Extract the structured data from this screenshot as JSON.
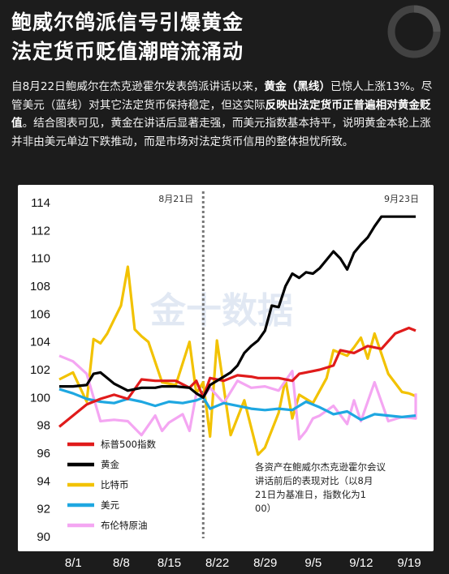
{
  "headline": {
    "line1": "鲍威尔鸽派信号引爆黄金",
    "line2": "法定货币贬值潮暗流涌动"
  },
  "intro": {
    "p1": "自8月22日鲍威尔在杰克逊霍尔发表鸽派讲话以来，",
    "p1_bold": "黄金（黑线）",
    "p2": "已惊人上涨13%。尽管美元（蓝线）对其它法定货币保持稳定，但这实际",
    "p2_bold": "反映出法定货币正普遍相对黄金贬值",
    "p3": "。结合图表可见，黄金在讲话后显著走强，而美元指数基本持平，说明黄金本轮上涨并非由美元单边下跌推动，而是市场对法定货币信用的整体担忧所致。"
  },
  "watermark": "金十数据",
  "colors": {
    "background": "#1c1c1c",
    "sp500": "#e01b1b",
    "gold": "#000000",
    "bitcoin": "#f2c200",
    "usd": "#1ea7e1",
    "brent": "#f4a6f2"
  },
  "chart_data": {
    "type": "line",
    "x_tick_labels": [
      "8/1",
      "8/8",
      "8/15",
      "8/22",
      "8/29",
      "9/5",
      "9/12",
      "9/19"
    ],
    "x_range": [
      0,
      54
    ],
    "ylim": [
      90,
      114
    ],
    "y_ticks": [
      90,
      92,
      94,
      96,
      98,
      100,
      102,
      104,
      106,
      108,
      110,
      112,
      114
    ],
    "grid": false,
    "legend_position": "bottom-left",
    "reference_line": {
      "x": 21,
      "label": "8月21日"
    },
    "end_label": "9月23日",
    "note": "各资产在鲍威尔杰克逊霍尔会议讲话前后的表现对比（以8月21日为基准日，指数化为100）",
    "series": [
      {
        "name": "标普500指数",
        "color_key": "sp500",
        "x": [
          0,
          2,
          4,
          6,
          8,
          10,
          12,
          14,
          15,
          17,
          19,
          20,
          21,
          22,
          24,
          26,
          28,
          29,
          30,
          32,
          34,
          35,
          36,
          38,
          40,
          41,
          43,
          45,
          47,
          49,
          51,
          53
        ],
        "y": [
          97.9,
          98.7,
          99.5,
          99.9,
          100.2,
          99.9,
          101.3,
          101.2,
          101.2,
          101.2,
          100.7,
          101.2,
          100.0,
          101.4,
          101.2,
          101.6,
          101.5,
          101.4,
          101.4,
          101.4,
          101.2,
          101.7,
          101.8,
          102.0,
          102.3,
          103.4,
          103.2,
          103.7,
          103.5,
          104.6,
          105.0,
          104.8
        ]
      },
      {
        "name": "黄金",
        "color_key": "gold",
        "x": [
          0,
          2,
          4,
          5,
          6,
          8,
          10,
          12,
          14,
          15,
          17,
          19,
          20,
          21,
          22,
          24,
          25,
          26,
          27,
          28,
          29,
          30,
          31,
          32,
          33,
          34,
          35,
          36,
          37,
          38,
          39,
          40,
          41,
          42,
          43,
          44,
          45,
          46,
          47,
          48,
          49,
          50,
          51,
          52,
          53
        ],
        "y": [
          100.8,
          100.8,
          100.9,
          101.7,
          101.8,
          101.0,
          100.5,
          100.7,
          100.7,
          100.8,
          100.8,
          100.7,
          100.3,
          100.0,
          100.9,
          101.5,
          101.8,
          102.3,
          103.2,
          103.7,
          104.1,
          104.8,
          106.6,
          106.5,
          108.0,
          108.9,
          108.6,
          109.0,
          108.9,
          109.3,
          109.9,
          110.5,
          110.0,
          109.2,
          110.4,
          111.0,
          111.5,
          112.3,
          113.0,
          113.0,
          113.0,
          113.0,
          113.0,
          113.0,
          113.0
        ]
      },
      {
        "name": "比特币",
        "color_key": "bitcoin",
        "x": [
          0,
          2,
          4,
          5,
          6,
          7,
          8,
          9,
          10,
          11,
          12,
          13,
          15,
          17,
          19,
          20,
          21,
          22,
          23,
          25,
          27,
          29,
          30,
          32,
          33,
          34,
          35,
          37,
          39,
          40,
          42,
          43,
          44,
          45,
          46,
          48,
          50,
          51,
          53
        ],
        "y": [
          101.3,
          101.8,
          99.7,
          104.2,
          103.9,
          104.6,
          105.6,
          106.6,
          109.4,
          104.9,
          104.4,
          104.0,
          101.1,
          100.9,
          104.0,
          100.3,
          101.1,
          97.2,
          104.1,
          97.3,
          99.8,
          95.9,
          96.4,
          98.9,
          101.3,
          98.5,
          100.2,
          99.6,
          101.4,
          103.4,
          103.0,
          103.6,
          104.3,
          102.8,
          104.6,
          101.7,
          100.4,
          100.3,
          100.1
        ]
      },
      {
        "name": "美元",
        "color_key": "usd",
        "x": [
          0,
          2,
          4,
          6,
          8,
          10,
          12,
          14,
          16,
          18,
          20,
          21,
          22,
          24,
          26,
          28,
          30,
          32,
          34,
          36,
          38,
          40,
          42,
          44,
          46,
          48,
          50,
          52,
          53
        ],
        "y": [
          100.6,
          100.3,
          99.9,
          99.7,
          99.6,
          99.9,
          99.7,
          99.4,
          99.7,
          99.6,
          99.8,
          100.0,
          99.2,
          99.6,
          99.4,
          99.2,
          99.1,
          99.2,
          99.1,
          99.7,
          99.3,
          98.8,
          99.0,
          98.4,
          98.8,
          98.7,
          98.6,
          98.7,
          98.7
        ]
      },
      {
        "name": "布伦特原油",
        "color_key": "brent",
        "x": [
          0,
          2,
          4,
          6,
          8,
          10,
          12,
          14,
          15,
          16,
          18,
          19,
          20,
          21,
          22,
          24,
          26,
          28,
          30,
          32,
          34,
          35,
          36,
          37,
          38,
          40,
          42,
          43,
          44,
          45,
          46,
          48,
          50,
          52,
          53
        ],
        "y": [
          103.0,
          102.6,
          101.7,
          98.3,
          98.4,
          98.3,
          97.3,
          98.7,
          97.6,
          98.2,
          98.8,
          97.6,
          100.3,
          100.0,
          100.7,
          99.6,
          101.2,
          100.7,
          100.8,
          100.5,
          101.9,
          97.0,
          97.6,
          98.5,
          98.7,
          99.4,
          98.1,
          99.8,
          98.3,
          99.7,
          101.1,
          98.3,
          98.6,
          98.5,
          100.3
        ]
      }
    ]
  }
}
